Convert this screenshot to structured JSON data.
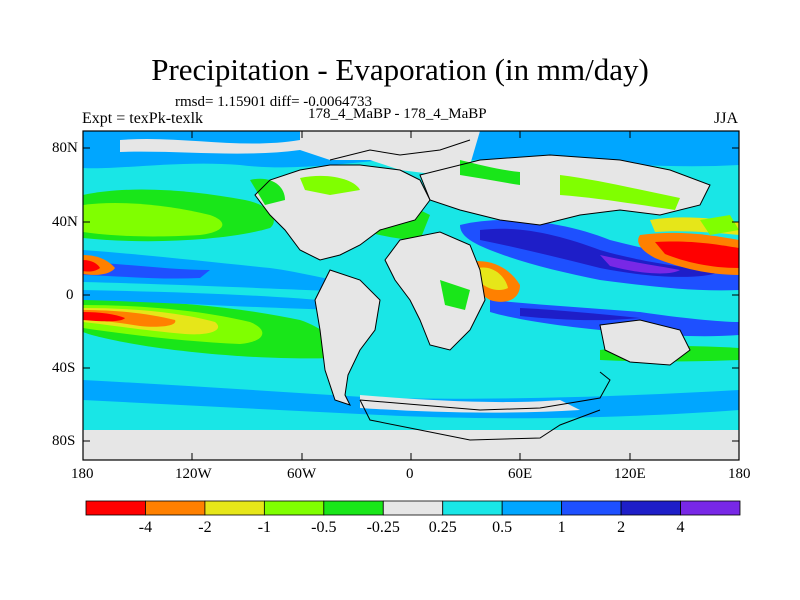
{
  "title": "Precipitation - Evaporation (in mm/day)",
  "stats": "rmsd= 1.15901 diff= -0.0064733",
  "experiment": "Expt = texPk-texlk",
  "case": "178_4_MaBP - 178_4_MaBP",
  "season": "JJA",
  "axes": {
    "lat_ticks": [
      "80N",
      "40N",
      "0",
      "40S",
      "80S"
    ],
    "lon_ticks": [
      "180",
      "120W",
      "60W",
      "0",
      "60E",
      "120E",
      "180"
    ]
  },
  "colorbar": {
    "labels": [
      "-4",
      "-2",
      "-1",
      "-0.5",
      "-0.25",
      "0.25",
      "0.5",
      "1",
      "2",
      "4"
    ],
    "colors": [
      "#ff0000",
      "#ff8000",
      "#e6e619",
      "#80ff00",
      "#19e619",
      "#e6e6e6",
      "#19e6e6",
      "#00a6ff",
      "#1e50ff",
      "#1e1ec8",
      "#7828e6"
    ]
  },
  "colors": {
    "land_outline": "#000000",
    "background": "#ffffff"
  }
}
